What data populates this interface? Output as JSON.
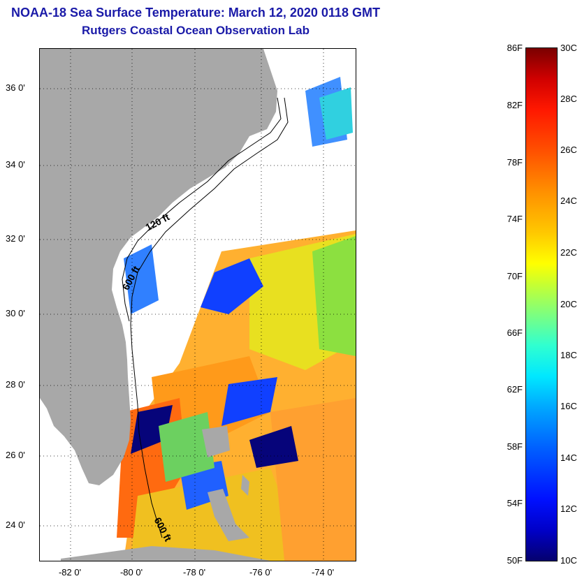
{
  "title": {
    "line1": "NOAA-18 Sea Surface Temperature:  March 12, 2020 0118 GMT",
    "line2": "Rutgers Coastal Ocean Observation Lab"
  },
  "map": {
    "lat_labels": [
      "36 0'",
      "34 0'",
      "32 0'",
      "30 0'",
      "28 0'",
      "26 0'",
      "24 0'"
    ],
    "lon_labels": [
      "-82 0'",
      "-80 0'",
      "-78 0'",
      "-76 0'",
      "-74 0'"
    ],
    "isobath_labels": [
      "120 ft",
      "600 ft",
      "600 ft"
    ],
    "colors": {
      "land": "#a8a8a8",
      "cloud": "#ffffff",
      "warm": "#ff9a1a",
      "hot": "#ff6000",
      "yellow": "#e8e020",
      "green": "#8ce040",
      "cyan": "#30d0e0",
      "blue": "#1040ff",
      "navy": "#06047a"
    }
  },
  "colorbar": {
    "fahrenheit_labels": [
      "86F",
      "82F",
      "78F",
      "74F",
      "70F",
      "66F",
      "62F",
      "58F",
      "54F",
      "50F"
    ],
    "celsius_labels": [
      "30C",
      "28C",
      "26C",
      "24C",
      "22C",
      "20C",
      "18C",
      "16C",
      "14C",
      "12C",
      "10C"
    ]
  }
}
